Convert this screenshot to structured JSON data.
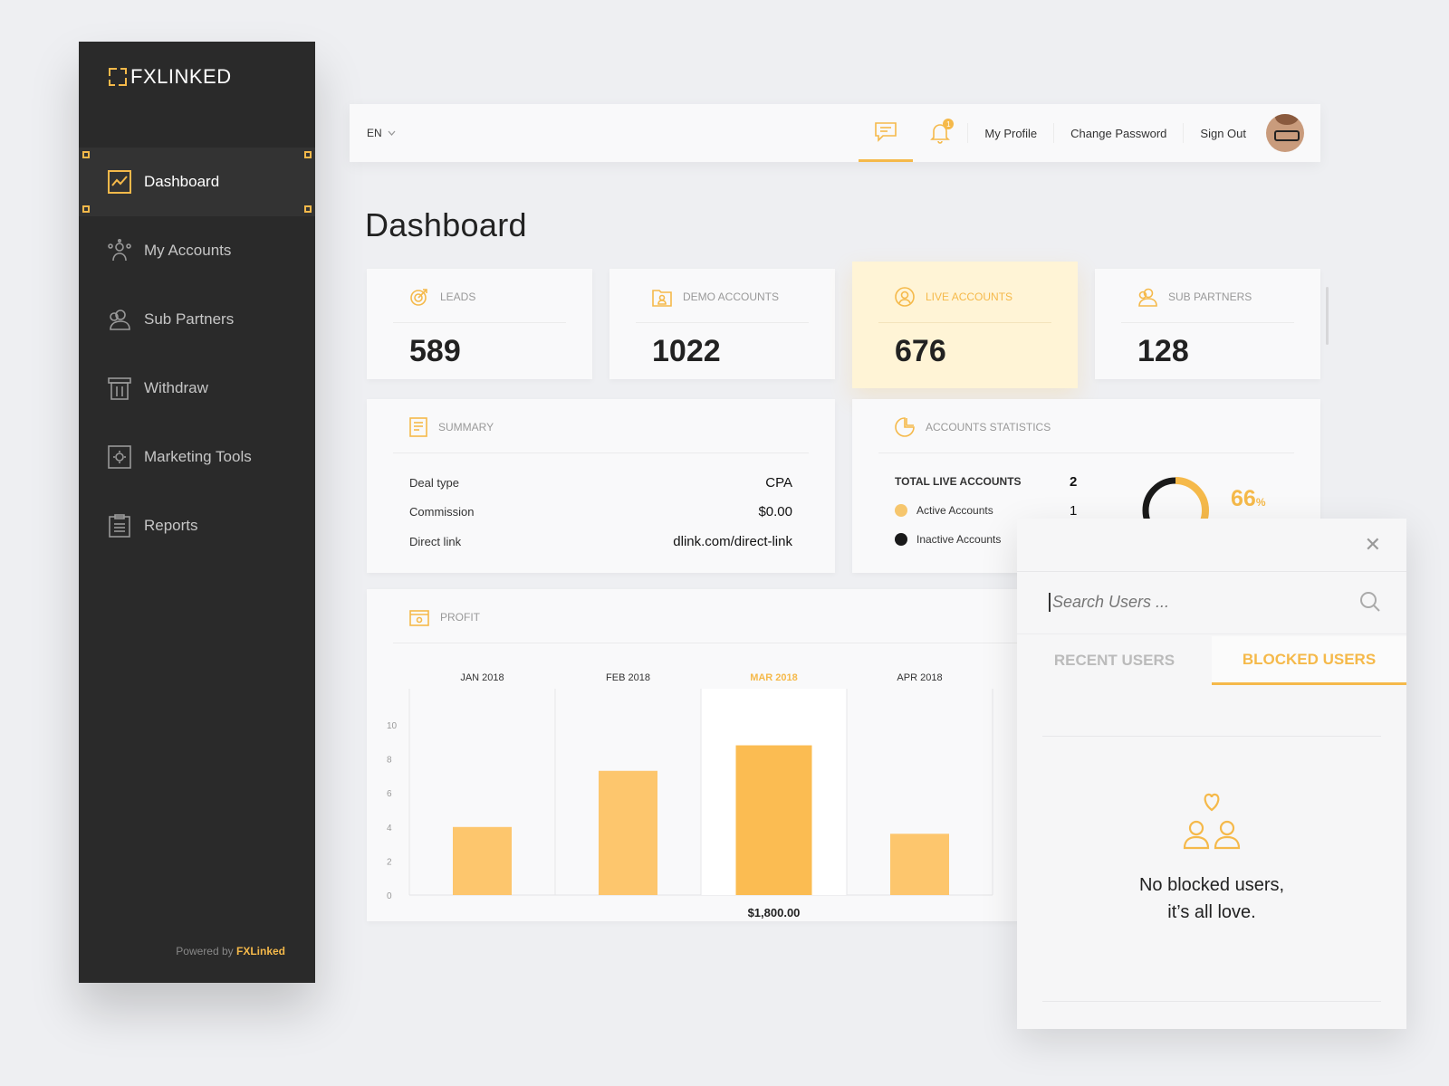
{
  "brand": {
    "name": "FXLINKED",
    "powered_prefix": "Powered by ",
    "powered_name": "FXLinked"
  },
  "sidebar": {
    "items": [
      {
        "label": "Dashboard",
        "icon": "chart-line-icon",
        "active": true
      },
      {
        "label": "My Accounts",
        "icon": "users-group-icon"
      },
      {
        "label": "Sub Partners",
        "icon": "partners-icon"
      },
      {
        "label": "Withdraw",
        "icon": "withdraw-icon"
      },
      {
        "label": "Marketing Tools",
        "icon": "gear-box-icon"
      },
      {
        "label": "Reports",
        "icon": "clipboard-icon"
      }
    ]
  },
  "topbar": {
    "lang": "EN",
    "notifications_count": "1",
    "links": [
      "My Profile",
      "Change Password",
      "Sign Out"
    ]
  },
  "page": {
    "title": "Dashboard"
  },
  "stats": [
    {
      "label": "LEADS",
      "value": "589",
      "icon": "target-icon"
    },
    {
      "label": "DEMO ACCOUNTS",
      "value": "1022",
      "icon": "folder-user-icon"
    },
    {
      "label": "LIVE ACCOUNTS",
      "value": "676",
      "icon": "user-circle-icon"
    },
    {
      "label": "SUB PARTNERS",
      "value": "128",
      "icon": "partners-icon"
    }
  ],
  "summary": {
    "title": "SUMMARY",
    "rows": [
      {
        "key": "Deal type",
        "value": "CPA"
      },
      {
        "key": "Commission",
        "value": "$0.00"
      },
      {
        "key": "Direct link",
        "value": "dlink.com/direct-link"
      }
    ]
  },
  "accounts_stats": {
    "title": "ACCOUNTS STATISTICS",
    "total_label": "TOTAL LIVE ACCOUNTS",
    "total_value": "2",
    "active_label": "Active Accounts",
    "active_value": "1",
    "inactive_label": "Inactive Accounts",
    "percent": "66",
    "percent_unit": "%",
    "colors": {
      "active": "#f5b94a",
      "inactive": "#1a1a1a"
    }
  },
  "profit": {
    "title": "PROFIT"
  },
  "chart_data": {
    "type": "bar",
    "categories": [
      "JAN 2018",
      "FEB 2018",
      "MAR 2018",
      "APR 2018"
    ],
    "values": [
      4,
      7.3,
      8.8,
      3.6
    ],
    "highlight": "MAR 2018",
    "highlight_label": "$1,800.00",
    "ylim": [
      0,
      10
    ],
    "yticks": [
      "0",
      "2",
      "4",
      "6",
      "8",
      "10"
    ],
    "grid": true
  },
  "modal": {
    "search_placeholder": "Search Users ...",
    "tabs": [
      "RECENT USERS",
      "BLOCKED USERS"
    ],
    "active_tab": "BLOCKED USERS",
    "empty_line1": "No blocked users,",
    "empty_line2": "it’s all love."
  },
  "colors": {
    "accent": "#f5b94a",
    "sidebar": "#2a2a2a",
    "background": "#eeeff2"
  }
}
